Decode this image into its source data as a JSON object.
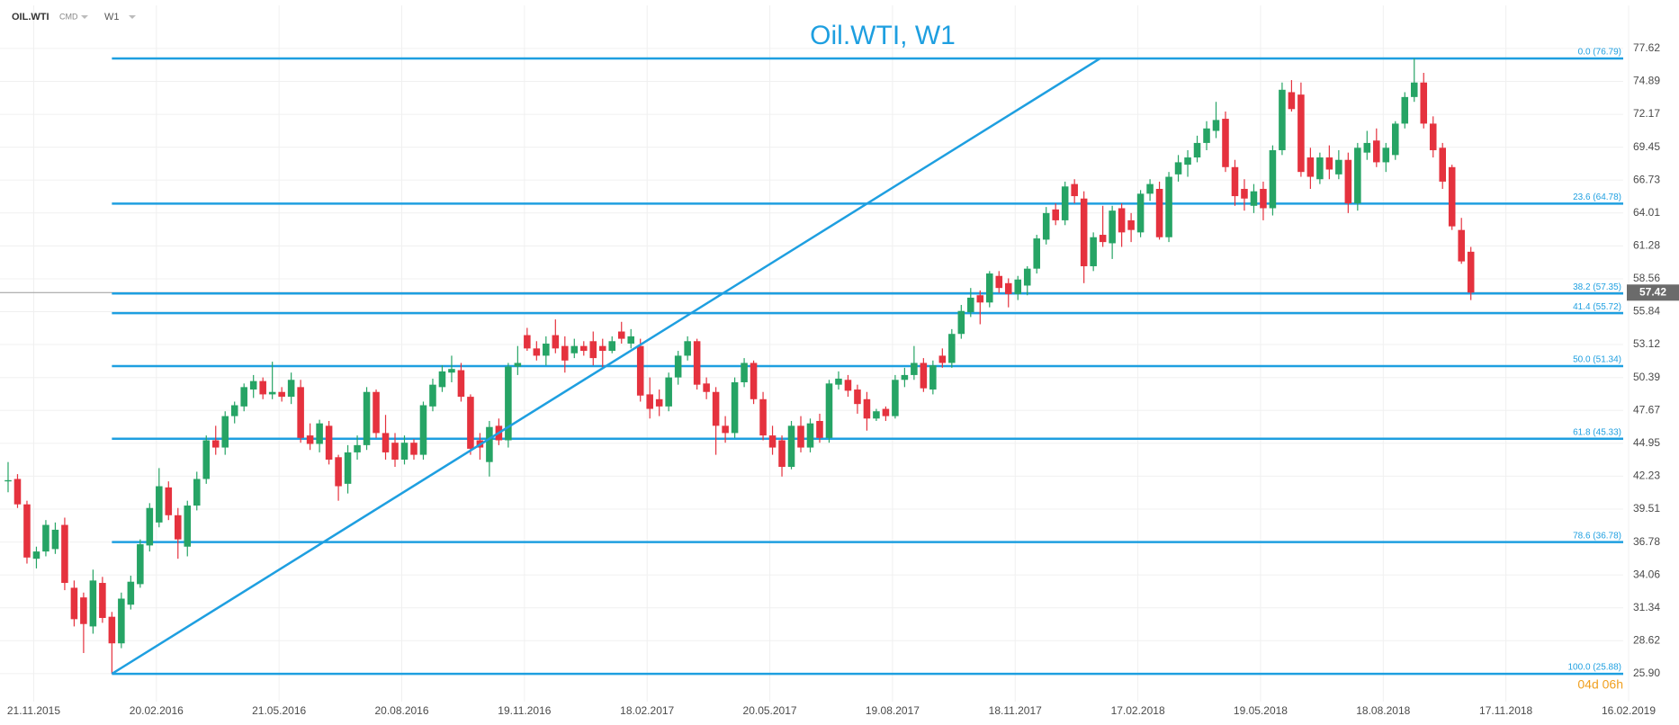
{
  "toolbar": {
    "symbol": "OIL.WTI",
    "group": "CMD",
    "interval": "W1"
  },
  "chart_data": {
    "type": "candlestick",
    "title": "Oil.WTI, W1",
    "up_color": "#26a465",
    "down_color": "#e5323e",
    "line_color": "#1e9fe0",
    "grid": true,
    "xlim": [
      "27.10.2015",
      "12.02.2019"
    ],
    "ylim": [
      23.58,
      81.18
    ],
    "xticks": [
      "21.11.2015",
      "20.02.2016",
      "21.05.2016",
      "20.08.2016",
      "19.11.2016",
      "18.02.2017",
      "20.05.2017",
      "19.08.2017",
      "18.11.2017",
      "17.02.2018",
      "19.05.2018",
      "18.08.2018",
      "17.11.2018",
      "16.02.2019"
    ],
    "yticks": [
      {
        "value": 25.9,
        "label": "25.90"
      },
      28.62,
      31.34,
      34.06,
      36.78,
      39.51,
      42.23,
      44.95,
      47.67,
      50.39,
      53.12,
      55.84,
      58.56,
      61.28,
      64.01,
      66.73,
      69.45,
      72.17,
      74.89,
      77.62
    ],
    "x": [
      "02.11.2015",
      "09.11.2015",
      "16.11.2015",
      "23.11.2015",
      "30.11.2015",
      "07.12.2015",
      "14.12.2015",
      "21.12.2015",
      "28.12.2015",
      "04.01.2016",
      "11.01.2016",
      "18.01.2016",
      "25.01.2016",
      "01.02.2016",
      "08.02.2016",
      "15.02.2016",
      "22.02.2016",
      "29.02.2016",
      "07.03.2016",
      "14.03.2016",
      "21.03.2016",
      "28.03.2016",
      "04.04.2016",
      "11.04.2016",
      "18.04.2016",
      "25.04.2016",
      "02.05.2016",
      "09.05.2016",
      "16.05.2016",
      "23.05.2016",
      "30.05.2016",
      "06.06.2016",
      "13.06.2016",
      "20.06.2016",
      "27.06.2016",
      "04.07.2016",
      "11.07.2016",
      "18.07.2016",
      "25.07.2016",
      "01.08.2016",
      "08.08.2016",
      "15.08.2016",
      "22.08.2016",
      "29.08.2016",
      "05.09.2016",
      "12.09.2016",
      "19.09.2016",
      "26.09.2016",
      "03.10.2016",
      "10.10.2016",
      "17.10.2016",
      "24.10.2016",
      "31.10.2016",
      "07.11.2016",
      "14.11.2016",
      "21.11.2016",
      "28.11.2016",
      "05.12.2016",
      "12.12.2016",
      "19.12.2016",
      "26.12.2016",
      "02.01.2017",
      "09.01.2017",
      "16.01.2017",
      "23.01.2017",
      "30.01.2017",
      "06.02.2017",
      "13.02.2017",
      "20.02.2017",
      "27.02.2017",
      "06.03.2017",
      "13.03.2017",
      "20.03.2017",
      "27.03.2017",
      "03.04.2017",
      "10.04.2017",
      "17.04.2017",
      "24.04.2017",
      "01.05.2017",
      "08.05.2017",
      "15.05.2017",
      "22.05.2017",
      "29.05.2017",
      "05.06.2017",
      "12.06.2017",
      "19.06.2017",
      "26.06.2017",
      "03.07.2017",
      "10.07.2017",
      "17.07.2017",
      "24.07.2017",
      "31.07.2017",
      "07.08.2017",
      "14.08.2017",
      "21.08.2017",
      "28.08.2017",
      "04.09.2017",
      "11.09.2017",
      "18.09.2017",
      "25.09.2017",
      "02.10.2017",
      "09.10.2017",
      "16.10.2017",
      "23.10.2017",
      "30.10.2017",
      "06.11.2017",
      "13.11.2017",
      "20.11.2017",
      "27.11.2017",
      "04.12.2017",
      "11.12.2017",
      "18.12.2017",
      "25.12.2017",
      "01.01.2018",
      "08.01.2018",
      "15.01.2018",
      "22.01.2018",
      "29.01.2018",
      "05.02.2018",
      "12.02.2018",
      "19.02.2018",
      "26.02.2018",
      "05.03.2018",
      "12.03.2018",
      "19.03.2018",
      "26.03.2018",
      "02.04.2018",
      "09.04.2018",
      "16.04.2018",
      "23.04.2018",
      "30.04.2018",
      "07.05.2018",
      "14.05.2018",
      "21.05.2018",
      "28.05.2018",
      "04.06.2018",
      "11.06.2018",
      "18.06.2018",
      "25.06.2018",
      "02.07.2018",
      "09.07.2018",
      "16.07.2018",
      "23.07.2018",
      "30.07.2018",
      "06.08.2018",
      "13.08.2018",
      "20.08.2018",
      "27.08.2018",
      "03.09.2018",
      "10.09.2018",
      "17.09.2018",
      "24.09.2018",
      "01.10.2018",
      "08.10.2018",
      "15.10.2018",
      "22.10.2018"
    ],
    "ohlc": [
      [
        41.8,
        43.4,
        40.9,
        41.9
      ],
      [
        42.0,
        42.4,
        39.6,
        39.9
      ],
      [
        39.9,
        40.2,
        35.0,
        35.5
      ],
      [
        35.4,
        36.4,
        34.6,
        36.0
      ],
      [
        36.0,
        38.6,
        35.6,
        38.2
      ],
      [
        36.2,
        38.4,
        35.8,
        37.8
      ],
      [
        38.2,
        38.8,
        32.8,
        33.4
      ],
      [
        33.0,
        33.6,
        29.8,
        30.4
      ],
      [
        32.2,
        32.6,
        27.6,
        30.0
      ],
      [
        29.8,
        34.5,
        29.2,
        33.6
      ],
      [
        33.4,
        33.9,
        30.1,
        30.5
      ],
      [
        30.6,
        31.0,
        25.88,
        28.4
      ],
      [
        28.4,
        32.6,
        28.0,
        32.1
      ],
      [
        31.6,
        34.0,
        31.2,
        33.5
      ],
      [
        33.3,
        37.0,
        33.0,
        36.6
      ],
      [
        36.5,
        40.0,
        36.0,
        39.6
      ],
      [
        38.4,
        42.9,
        38.0,
        41.4
      ],
      [
        41.3,
        41.8,
        38.6,
        39.0
      ],
      [
        39.0,
        39.6,
        35.4,
        37.0
      ],
      [
        36.4,
        40.2,
        35.6,
        39.8
      ],
      [
        39.8,
        42.6,
        39.4,
        42.0
      ],
      [
        42.0,
        45.6,
        41.6,
        45.2
      ],
      [
        45.2,
        46.4,
        44.0,
        44.6
      ],
      [
        44.6,
        47.6,
        44.0,
        47.2
      ],
      [
        47.2,
        48.4,
        46.6,
        48.1
      ],
      [
        48.0,
        49.9,
        47.6,
        49.6
      ],
      [
        49.4,
        50.6,
        48.7,
        50.1
      ],
      [
        50.1,
        50.4,
        48.6,
        49.0
      ],
      [
        49.0,
        51.7,
        48.6,
        49.2
      ],
      [
        49.2,
        49.6,
        48.4,
        48.8
      ],
      [
        48.8,
        50.8,
        48.2,
        50.2
      ],
      [
        49.6,
        50.2,
        45.0,
        45.4
      ],
      [
        45.6,
        46.6,
        44.4,
        44.9
      ],
      [
        44.9,
        46.9,
        44.2,
        46.6
      ],
      [
        46.4,
        46.8,
        43.2,
        43.6
      ],
      [
        43.8,
        44.0,
        40.2,
        41.4
      ],
      [
        41.6,
        44.8,
        40.8,
        44.2
      ],
      [
        44.2,
        45.6,
        43.6,
        44.8
      ],
      [
        44.8,
        49.6,
        44.4,
        49.2
      ],
      [
        49.2,
        49.4,
        45.4,
        45.8
      ],
      [
        45.8,
        47.3,
        43.6,
        44.2
      ],
      [
        45.0,
        45.8,
        43.0,
        43.6
      ],
      [
        43.6,
        45.6,
        43.2,
        45.0
      ],
      [
        45.0,
        45.3,
        43.6,
        44.0
      ],
      [
        44.0,
        48.4,
        43.6,
        48.1
      ],
      [
        48.0,
        50.3,
        47.6,
        49.8
      ],
      [
        49.6,
        51.4,
        49.2,
        50.9
      ],
      [
        50.8,
        52.2,
        50.0,
        51.1
      ],
      [
        51.0,
        51.6,
        48.4,
        48.8
      ],
      [
        48.8,
        49.0,
        44.0,
        44.5
      ],
      [
        45.2,
        45.8,
        43.6,
        44.6
      ],
      [
        43.4,
        46.8,
        42.2,
        46.3
      ],
      [
        46.4,
        47.0,
        44.8,
        45.2
      ],
      [
        45.2,
        51.6,
        44.6,
        51.3
      ],
      [
        51.3,
        53.0,
        50.6,
        51.6
      ],
      [
        53.9,
        54.5,
        52.6,
        52.8
      ],
      [
        52.8,
        53.4,
        51.8,
        52.2
      ],
      [
        52.2,
        53.8,
        51.4,
        53.2
      ],
      [
        53.9,
        55.2,
        52.4,
        52.8
      ],
      [
        53.0,
        53.8,
        50.8,
        51.8
      ],
      [
        52.4,
        53.6,
        52.0,
        53.0
      ],
      [
        53.0,
        53.4,
        52.2,
        52.6
      ],
      [
        53.4,
        54.2,
        51.4,
        52.0
      ],
      [
        53.0,
        53.6,
        51.2,
        52.6
      ],
      [
        52.6,
        53.8,
        52.4,
        53.4
      ],
      [
        54.2,
        55.0,
        53.2,
        53.6
      ],
      [
        53.2,
        54.4,
        52.8,
        53.8
      ],
      [
        53.0,
        53.6,
        48.4,
        48.9
      ],
      [
        49.0,
        50.4,
        47.0,
        47.8
      ],
      [
        48.6,
        49.4,
        47.2,
        48.0
      ],
      [
        48.0,
        50.8,
        47.6,
        50.4
      ],
      [
        50.4,
        52.6,
        49.8,
        52.2
      ],
      [
        52.2,
        53.8,
        51.8,
        53.4
      ],
      [
        53.4,
        53.6,
        49.4,
        49.8
      ],
      [
        49.9,
        50.4,
        48.6,
        49.2
      ],
      [
        49.2,
        49.6,
        44.0,
        46.4
      ],
      [
        46.4,
        47.2,
        45.0,
        45.8
      ],
      [
        45.8,
        50.4,
        45.4,
        50.0
      ],
      [
        50.0,
        52.0,
        49.6,
        51.6
      ],
      [
        51.6,
        51.8,
        48.2,
        48.6
      ],
      [
        48.6,
        49.2,
        45.2,
        45.6
      ],
      [
        45.6,
        46.4,
        44.0,
        44.6
      ],
      [
        45.2,
        45.6,
        42.2,
        43.0
      ],
      [
        43.0,
        46.8,
        42.8,
        46.4
      ],
      [
        46.4,
        47.2,
        44.2,
        44.6
      ],
      [
        44.6,
        47.0,
        44.2,
        46.6
      ],
      [
        46.8,
        47.4,
        45.0,
        45.4
      ],
      [
        45.4,
        50.2,
        45.0,
        49.9
      ],
      [
        49.8,
        50.9,
        49.4,
        50.3
      ],
      [
        50.2,
        50.6,
        48.8,
        49.3
      ],
      [
        49.4,
        49.8,
        47.4,
        48.2
      ],
      [
        48.6,
        49.2,
        46.0,
        47.0
      ],
      [
        47.0,
        47.8,
        46.8,
        47.6
      ],
      [
        47.8,
        48.0,
        46.8,
        47.2
      ],
      [
        47.2,
        50.6,
        47.0,
        50.2
      ],
      [
        50.2,
        51.2,
        49.6,
        50.6
      ],
      [
        50.6,
        53.0,
        50.2,
        51.6
      ],
      [
        51.6,
        52.0,
        49.2,
        49.5
      ],
      [
        49.4,
        51.8,
        49.0,
        51.4
      ],
      [
        52.2,
        52.8,
        51.2,
        51.6
      ],
      [
        51.6,
        54.4,
        51.2,
        54.0
      ],
      [
        54.0,
        56.4,
        53.6,
        55.9
      ],
      [
        55.8,
        57.8,
        55.4,
        57.0
      ],
      [
        57.2,
        57.6,
        54.8,
        56.6
      ],
      [
        56.6,
        59.2,
        56.2,
        59.0
      ],
      [
        58.8,
        59.2,
        57.4,
        57.8
      ],
      [
        58.2,
        58.6,
        56.2,
        57.3
      ],
      [
        57.3,
        58.8,
        56.8,
        58.5
      ],
      [
        58.0,
        59.6,
        57.2,
        59.4
      ],
      [
        59.4,
        62.2,
        59.0,
        61.9
      ],
      [
        61.8,
        64.5,
        61.4,
        64.0
      ],
      [
        64.3,
        64.8,
        63.0,
        63.4
      ],
      [
        63.4,
        66.6,
        63.0,
        66.2
      ],
      [
        66.4,
        66.8,
        64.8,
        65.4
      ],
      [
        65.2,
        65.8,
        58.2,
        59.6
      ],
      [
        59.6,
        62.4,
        59.2,
        62.0
      ],
      [
        62.2,
        64.6,
        61.2,
        61.6
      ],
      [
        61.5,
        64.6,
        60.2,
        64.2
      ],
      [
        64.4,
        64.8,
        61.2,
        62.4
      ],
      [
        63.4,
        64.0,
        61.6,
        62.6
      ],
      [
        62.4,
        65.9,
        62.0,
        65.6
      ],
      [
        65.6,
        66.8,
        65.0,
        66.4
      ],
      [
        66.0,
        66.6,
        61.8,
        62.0
      ],
      [
        62.0,
        67.4,
        61.6,
        67.0
      ],
      [
        67.2,
        68.8,
        66.6,
        68.2
      ],
      [
        68.0,
        69.2,
        67.0,
        68.6
      ],
      [
        68.6,
        70.4,
        68.2,
        69.8
      ],
      [
        69.8,
        71.6,
        69.2,
        71.0
      ],
      [
        70.8,
        73.2,
        70.2,
        71.7
      ],
      [
        71.8,
        72.4,
        67.4,
        67.8
      ],
      [
        67.8,
        68.4,
        64.6,
        65.4
      ],
      [
        66.0,
        66.8,
        64.2,
        65.2
      ],
      [
        64.6,
        66.4,
        64.0,
        65.8
      ],
      [
        66.0,
        66.6,
        63.4,
        64.4
      ],
      [
        64.4,
        69.6,
        63.8,
        69.2
      ],
      [
        69.2,
        74.8,
        68.8,
        74.2
      ],
      [
        74.0,
        75.0,
        72.4,
        72.6
      ],
      [
        73.8,
        74.8,
        67.0,
        67.4
      ],
      [
        68.6,
        69.4,
        66.0,
        67.0
      ],
      [
        66.8,
        69.0,
        66.4,
        68.6
      ],
      [
        68.6,
        69.6,
        66.8,
        67.6
      ],
      [
        67.2,
        69.2,
        66.8,
        68.4
      ],
      [
        68.4,
        69.0,
        64.0,
        64.8
      ],
      [
        64.8,
        69.8,
        64.2,
        69.4
      ],
      [
        69.0,
        70.8,
        68.4,
        69.8
      ],
      [
        70.0,
        71.0,
        67.8,
        68.2
      ],
      [
        68.2,
        69.8,
        67.4,
        69.4
      ],
      [
        68.8,
        71.6,
        68.4,
        71.4
      ],
      [
        71.4,
        74.0,
        71.0,
        73.6
      ],
      [
        73.6,
        76.79,
        73.2,
        74.8
      ],
      [
        74.8,
        75.6,
        71.0,
        71.4
      ],
      [
        71.4,
        72.0,
        68.6,
        69.2
      ],
      [
        69.4,
        69.8,
        66.0,
        66.6
      ],
      [
        67.8,
        68.0,
        62.6,
        62.9
      ],
      [
        62.6,
        63.6,
        59.8,
        60.0
      ],
      [
        60.8,
        61.2,
        56.8,
        57.42
      ]
    ],
    "fib_levels": [
      {
        "value": 76.79,
        "label": "0.0 (76.79)"
      },
      {
        "value": 64.78,
        "label": "23.6 (64.78)"
      },
      {
        "value": 57.35,
        "label": "38.2 (57.35)"
      },
      {
        "value": 55.72,
        "label": "41.4 (55.72)"
      },
      {
        "value": 51.34,
        "label": "50.0 (51.34)"
      },
      {
        "value": 45.33,
        "label": "61.8 (45.33)"
      },
      {
        "value": 36.78,
        "label": "78.6 (36.78)"
      },
      {
        "value": 25.88,
        "label": "100.0 (25.88)"
      }
    ],
    "trend_line": {
      "x": [
        "18.01.2016",
        "20.01.2018"
      ],
      "y": [
        25.88,
        76.79
      ]
    },
    "last_price": 57.42,
    "countdown": "04d 06h"
  }
}
